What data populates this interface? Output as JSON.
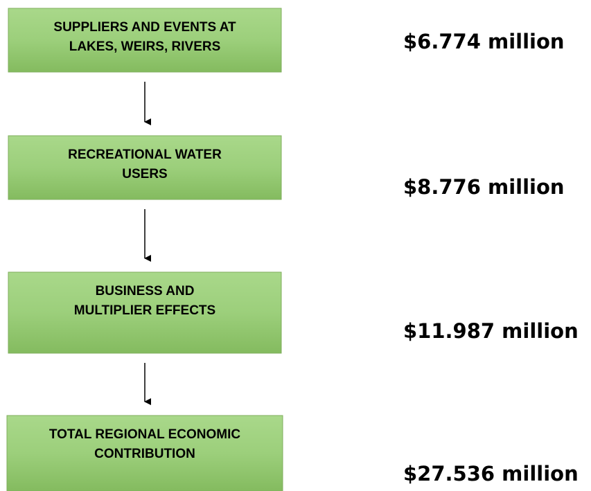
{
  "nodes": [
    {
      "label": [
        "SUPPLIERS AND EVENTS AT",
        "LAKES, WEIRS, RIVERS"
      ],
      "amount": "$6.774 million"
    },
    {
      "label": [
        "RECREATIONAL WATER",
        "USERS"
      ],
      "amount": "$8.776 million"
    },
    {
      "label": [
        "BUSINESS AND",
        "MULTIPLIER EFFECTS"
      ],
      "amount": "$11.987 million"
    },
    {
      "label": [
        "TOTAL REGIONAL ECONOMIC",
        "CONTRIBUTION"
      ],
      "amount": "$27.536 million"
    }
  ]
}
